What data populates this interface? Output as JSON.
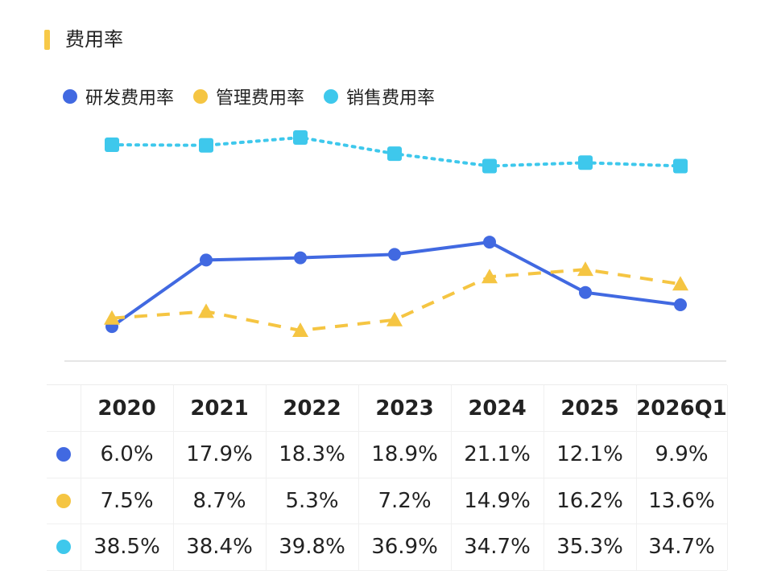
{
  "header": {
    "title": "费用率"
  },
  "colors": {
    "accent": "#f7c948",
    "rd": "#4169e1",
    "mgmt": "#f5c542",
    "sales": "#3ec8ec"
  },
  "chart_data": {
    "type": "line",
    "categories": [
      "2020",
      "2021",
      "2022",
      "2023",
      "2024",
      "2025",
      "2026Q1"
    ],
    "series": [
      {
        "name": "研发费用率",
        "values": [
          6.0,
          17.9,
          18.3,
          18.9,
          21.1,
          12.1,
          9.9
        ],
        "color": "#4169e1",
        "marker": "circle",
        "line": "solid"
      },
      {
        "name": "管理费用率",
        "values": [
          7.5,
          8.7,
          5.3,
          7.2,
          14.9,
          16.2,
          13.6
        ],
        "color": "#f5c542",
        "marker": "triangle",
        "line": "dashed"
      },
      {
        "name": "销售费用率",
        "values": [
          38.5,
          38.4,
          39.8,
          36.9,
          34.7,
          35.3,
          34.7
        ],
        "color": "#3ec8ec",
        "marker": "square",
        "line": "dotted"
      }
    ],
    "title": "费用率",
    "xlabel": "",
    "ylabel": "",
    "legend": "top-left",
    "grid": false
  },
  "table": {
    "headers": [
      "2020",
      "2021",
      "2022",
      "2023",
      "2024",
      "2025",
      "2026Q1"
    ],
    "rows": [
      {
        "color": "#4169e1",
        "cells": [
          "6.0%",
          "17.9%",
          "18.3%",
          "18.9%",
          "21.1%",
          "12.1%",
          "9.9%"
        ]
      },
      {
        "color": "#f5c542",
        "cells": [
          "7.5%",
          "8.7%",
          "5.3%",
          "7.2%",
          "14.9%",
          "16.2%",
          "13.6%"
        ]
      },
      {
        "color": "#3ec8ec",
        "cells": [
          "38.5%",
          "38.4%",
          "39.8%",
          "36.9%",
          "34.7%",
          "35.3%",
          "34.7%"
        ]
      }
    ]
  }
}
